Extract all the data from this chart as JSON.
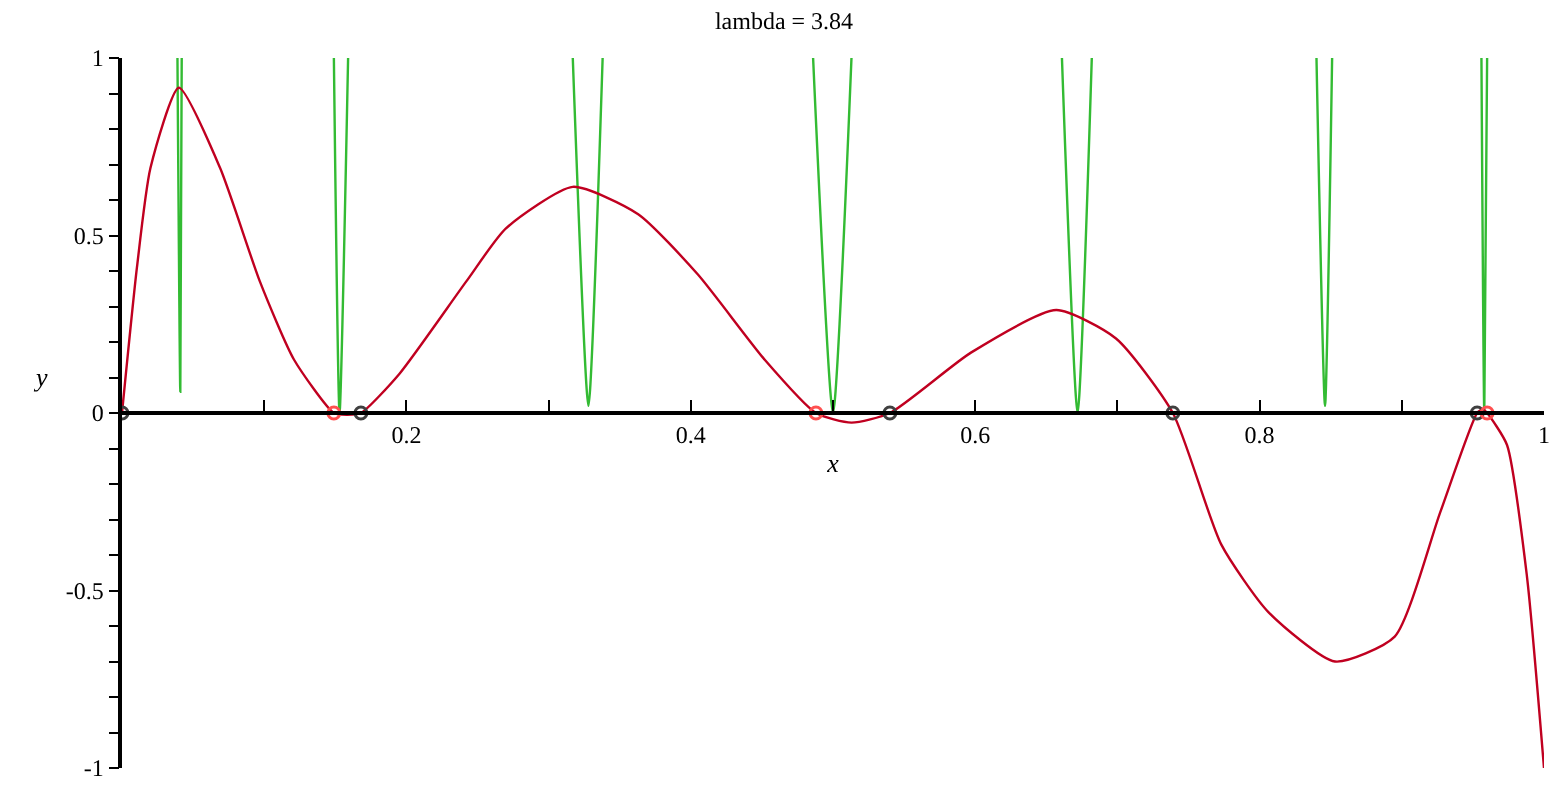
{
  "chart_data": {
    "type": "line",
    "title": "lambda = 3.84",
    "xlabel": "x",
    "ylabel": "y",
    "xlim": [
      0,
      1
    ],
    "ylim": [
      -1,
      1
    ],
    "xticks": [
      {
        "value": 0.1,
        "label": null
      },
      0.2,
      {
        "value": 0.3,
        "label": null
      },
      0.4,
      {
        "value": 0.5,
        "label": null
      },
      0.6,
      {
        "value": 0.7,
        "label": null
      },
      0.8,
      {
        "value": 0.9,
        "label": null
      },
      1
    ],
    "yticks": [
      -1,
      {
        "value": -0.9,
        "label": null
      },
      {
        "value": -0.8,
        "label": null
      },
      {
        "value": -0.7,
        "label": null
      },
      {
        "value": -0.6,
        "label": null
      },
      -0.5,
      {
        "value": -0.4,
        "label": null
      },
      {
        "value": -0.3,
        "label": null
      },
      {
        "value": -0.2,
        "label": null
      },
      {
        "value": -0.1,
        "label": null
      },
      0,
      {
        "value": 0.1,
        "label": null
      },
      {
        "value": 0.2,
        "label": null
      },
      {
        "value": 0.3,
        "label": null
      },
      {
        "value": 0.4,
        "label": null
      },
      0.5,
      {
        "value": 0.6,
        "label": null
      },
      {
        "value": 0.7,
        "label": null
      },
      {
        "value": 0.8,
        "label": null
      },
      {
        "value": 0.9,
        "label": null
      },
      1
    ],
    "line_style": "solid",
    "series": [
      {
        "marker": "none",
        "color": "#33bb33",
        "x": [
          0.039,
          0.041,
          0.042,
          null,
          0.149,
          0.153,
          0.159,
          null,
          0.317,
          0.328,
          0.338,
          null,
          0.486,
          0.5,
          0.513,
          null,
          0.661,
          0.672,
          0.682,
          null,
          0.84,
          0.846,
          0.851,
          null,
          0.956,
          0.958,
          0.96
        ],
        "values": [
          1,
          0.06,
          1,
          null,
          1,
          0,
          1,
          null,
          1,
          0.02,
          1,
          null,
          1,
          0,
          1,
          null,
          1,
          0,
          1,
          null,
          1,
          0.02,
          1,
          null,
          1,
          0,
          1
        ]
      },
      {
        "marker": "none",
        "color": "#c00020",
        "x": [
          0,
          0.0105,
          0.02,
          0.04,
          0.069,
          0.097,
          0.121,
          0.149,
          0.158,
          0.168,
          0.195,
          0.242,
          0.27,
          0.317,
          0.363,
          0.405,
          0.452,
          0.488,
          0.513,
          0.54,
          0.597,
          0.657,
          0.699,
          0.739,
          0.773,
          0.806,
          0.853,
          0.895,
          0.927,
          0.953,
          0.957,
          0.96,
          0.974,
          0.988,
          1
        ],
        "values": [
          0,
          0.41,
          0.69,
          0.916,
          0.69,
          0.37,
          0.15,
          0,
          -0.005,
          0,
          0.11,
          0.37,
          0.52,
          0.637,
          0.56,
          0.39,
          0.15,
          0,
          -0.027,
          0,
          0.17,
          0.29,
          0.21,
          0,
          -0.37,
          -0.56,
          -0.7,
          -0.63,
          -0.28,
          0,
          0.01,
          0,
          -0.09,
          -0.46,
          -1
        ]
      },
      {
        "type": "scatter",
        "marker": "circle",
        "color": "#404040",
        "x": [
          0,
          0.168,
          0.54,
          0.739,
          0.953
        ],
        "values": [
          0,
          0,
          0,
          0,
          0
        ]
      },
      {
        "type": "scatter",
        "marker": "circle",
        "color": "#ff5050",
        "x": [
          0.149,
          0.488,
          0.96
        ],
        "values": [
          0,
          0,
          0
        ]
      }
    ]
  }
}
